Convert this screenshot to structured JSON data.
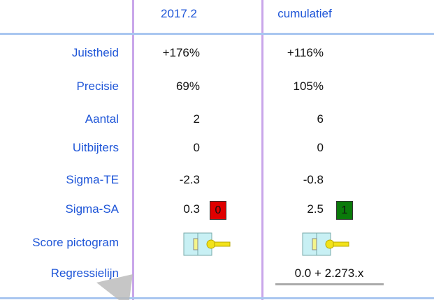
{
  "header": {
    "columns": [
      "2017.2",
      "cumulatief"
    ]
  },
  "rows": [
    {
      "label": "Juistheid",
      "col1": "+176%",
      "col2": "+116%"
    },
    {
      "label": "Precisie",
      "col1": "69%",
      "col2": "105%"
    },
    {
      "label": "Aantal",
      "col1": "2",
      "col2": "6"
    },
    {
      "label": "Uitbijters",
      "col1": "0",
      "col2": "0"
    },
    {
      "label": "Sigma-TE",
      "col1": "-2.3",
      "col2": "-0.8"
    },
    {
      "label": "Sigma-SA",
      "col1": "0.3",
      "col2": "2.5",
      "badge1": "0",
      "badge2": "1"
    },
    {
      "label": "Score pictogram",
      "pictogram": true
    },
    {
      "label": "Regressielijn",
      "col2": "0.0 + 2.273.x"
    }
  ]
}
